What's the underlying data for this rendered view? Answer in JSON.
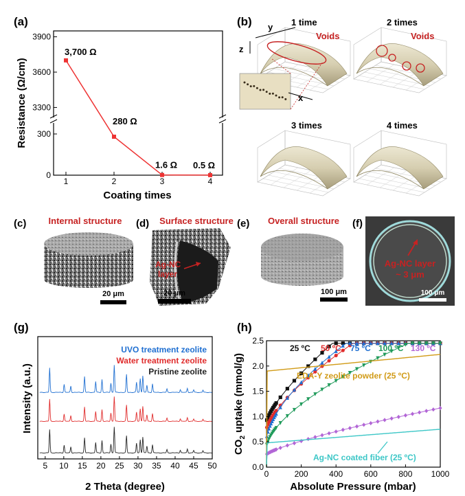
{
  "panels": {
    "a": {
      "label": "(a)",
      "xlabel": "Coating times",
      "ylabel": "Resistance (Ω/cm)",
      "upper_ticks": [
        "3300",
        "3600",
        "3900"
      ],
      "lower_ticks": [
        "0",
        "300"
      ],
      "xticks": [
        "1",
        "2",
        "3",
        "4"
      ],
      "point_labels": [
        "3,700 Ω",
        "280 Ω",
        "1.6 Ω",
        "0.5 Ω"
      ]
    },
    "b": {
      "label": "(b)",
      "axis_y": "y",
      "axis_z": "z",
      "axis_x": "x",
      "titles": [
        "1 time",
        "2 times",
        "3 times",
        "4 times"
      ],
      "voids_label": "Voids"
    },
    "c": {
      "label": "(c)",
      "title": "Internal structure",
      "scale": "20 μm"
    },
    "d": {
      "label": "(d)",
      "title": "Surface structure",
      "scale": "20 μm",
      "annotation_1": "Ag-NC",
      "annotation_2": "layer"
    },
    "e": {
      "label": "(e)",
      "title": "Overall structure",
      "scale": "100 μm"
    },
    "f": {
      "label": "(f)",
      "annotation_1": "Ag-NC layer",
      "annotation_2": "~ 3 μm",
      "scale": "100 μm"
    },
    "g": {
      "label": "(g)",
      "xlabel": "2 Theta (degree)",
      "ylabel": "Intensity (a.u.)",
      "xticks": [
        "5",
        "10",
        "15",
        "20",
        "25",
        "30",
        "35",
        "40",
        "45",
        "50"
      ],
      "legend": [
        "UVO treatment zeolite",
        "Water treatment zeolite",
        "Pristine zeolite"
      ]
    },
    "h": {
      "label": "(h)",
      "xlabel": "Absolute Pressure (mbar)",
      "ylabel_main": "CO",
      "ylabel_sub": "2",
      "ylabel_rest": " uptake (mmol/g)",
      "yticks": [
        "0.0",
        "0.5",
        "1.0",
        "1.5",
        "2.0",
        "2.5"
      ],
      "xticks": [
        "0",
        "200",
        "400",
        "600",
        "800",
        "1000"
      ],
      "temps": [
        "25 ºC",
        "50 ºC",
        "75 ºC",
        "100 ºC",
        "130 ºC"
      ],
      "eda_label": "EDA-Y zeolite powder (25 ºC)",
      "ag_label": "Ag-NC coated fiber (25 ºC)"
    }
  },
  "chart_data": [
    {
      "type": "line",
      "x": [
        1,
        2,
        3,
        4
      ],
      "values": [
        3700,
        280,
        1.6,
        0.5
      ],
      "ylim_lower": [
        0,
        350
      ],
      "ylim_upper": [
        3250,
        3950
      ]
    },
    {
      "type": "line",
      "x_range": [
        3,
        50
      ],
      "peaks": [
        6.2,
        10.1,
        11.9,
        15.6,
        18.6,
        20.3,
        22.7,
        23.6,
        26.9,
        29.6,
        30.6,
        31.3,
        32.4,
        33.9,
        37.8,
        41.4,
        43.3,
        45.0,
        47.5
      ],
      "heights": [
        0.85,
        0.28,
        0.22,
        0.55,
        0.38,
        0.45,
        0.32,
        0.95,
        0.62,
        0.35,
        0.48,
        0.58,
        0.25,
        0.3,
        0.12,
        0.1,
        0.14,
        0.09,
        0.08
      ],
      "series": [
        {
          "name": "UVO treatment zeolite",
          "color": "#1f6fd1"
        },
        {
          "name": "Water treatment zeolite",
          "color": "#e02b2b"
        },
        {
          "name": "Pristine zeolite",
          "color": "#222222"
        }
      ]
    },
    {
      "type": "line",
      "xlim": [
        0,
        1000
      ],
      "ylim": [
        0,
        2.5
      ],
      "series": [
        {
          "name": "25 ºC",
          "color": "#111111",
          "marker": "square",
          "q0": 0.9,
          "k": 0.003,
          "a": 0.018,
          "b": 0.75
        },
        {
          "name": "50 ºC",
          "color": "#e02b2b",
          "marker": "circle",
          "q0": 0.75,
          "k": 0.0035,
          "a": 0.022,
          "b": 0.7
        },
        {
          "name": "75 ºC",
          "color": "#1f6fd1",
          "marker": "triangle",
          "q0": 0.55,
          "k": 0.005,
          "a": 0.04,
          "b": 0.63
        },
        {
          "name": "100 ºC",
          "color": "#1f9a5a",
          "marker": "triangle-down",
          "q0": 0.4,
          "k": 0.004,
          "a": 0.03,
          "b": 0.63
        },
        {
          "name": "130 ºC",
          "color": "#b266d6",
          "marker": "diamond",
          "q0": 0.25,
          "k": 0.006,
          "a": 0.0045,
          "b": 0.77
        },
        {
          "name": "EDA-Y zeolite powder (25 ºC)",
          "color": "#d19b17",
          "q0": 1.9,
          "k": 0.002,
          "a": 0.00033,
          "b": 1.0
        },
        {
          "name": "Ag-NC coated fiber (25 ºC)",
          "color": "#3dc7c7",
          "q0": 0.48,
          "k": 0.004,
          "a": 0.00027,
          "b": 1.0
        }
      ]
    }
  ]
}
